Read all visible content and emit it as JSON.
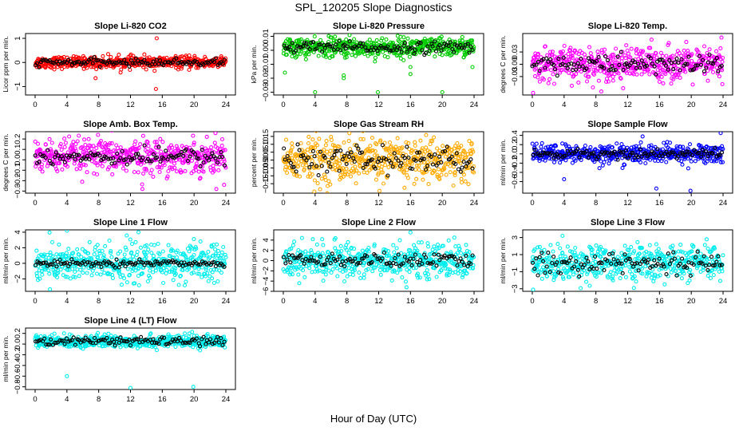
{
  "figure": {
    "title": "SPL_120205  Slope Diagnostics",
    "xlabel": "Hour of Day (UTC)"
  },
  "chart_data": [
    {
      "type": "scatter",
      "title": "Slope Li-820 CO2",
      "ylabel": "Licor ppm per min.",
      "xlim": [
        0,
        24
      ],
      "xticks": [
        0,
        4,
        8,
        12,
        16,
        20,
        24
      ],
      "ylim": [
        -1.35,
        1.2
      ],
      "yticks": [
        -1,
        0,
        1
      ],
      "color": "#ff0000",
      "center": 0.0,
      "spread": 0.12,
      "black_spread": 0.07,
      "outliers": [
        [
          7.6,
          -0.65
        ],
        [
          15.2,
          -1.1
        ],
        [
          15.3,
          1.0
        ]
      ]
    },
    {
      "type": "scatter",
      "title": "Slope Li-820 Pressure",
      "ylabel": "kPa per min.",
      "xlim": [
        0,
        24
      ],
      "xticks": [
        0,
        4,
        8,
        12,
        16,
        20,
        24
      ],
      "ylim": [
        -0.032,
        0.012
      ],
      "yticks": [
        -0.03,
        -0.02,
        -0.01,
        0.0,
        0.01
      ],
      "color": "#00cc00",
      "center": 0.002,
      "spread": 0.0035,
      "black_spread": 0.002,
      "outliers": [
        [
          0.2,
          -0.016
        ],
        [
          4.0,
          -0.03
        ],
        [
          7.6,
          -0.018
        ],
        [
          7.6,
          -0.02
        ],
        [
          11.9,
          -0.03
        ],
        [
          16.0,
          -0.012
        ],
        [
          16.0,
          -0.017
        ],
        [
          20.0,
          -0.03
        ],
        [
          23.8,
          -0.012
        ]
      ]
    },
    {
      "type": "scatter",
      "title": "Slope Li-820 Temp.",
      "ylabel": "degrees C per min.",
      "xlim": [
        0,
        24
      ],
      "xticks": [
        0,
        4,
        8,
        12,
        16,
        20,
        24
      ],
      "ylim": [
        -0.075,
        0.075
      ],
      "yticks": [
        -0.03,
        0.0,
        0.03
      ],
      "color": "#ff00ff",
      "center": 0.0,
      "spread": 0.02,
      "black_spread": 0.012,
      "outliers": [
        [
          0.1,
          -0.07
        ],
        [
          15.0,
          0.06
        ],
        [
          23.8,
          0.065
        ]
      ]
    },
    {
      "type": "scatter",
      "title": "Slope Amb. Box Temp.",
      "ylabel": "degrees C per min.",
      "xlim": [
        0,
        24
      ],
      "xticks": [
        0,
        4,
        8,
        12,
        16,
        20,
        24
      ],
      "ylim": [
        -0.32,
        0.27
      ],
      "yticks": [
        -0.3,
        -0.2,
        -0.1,
        0.0,
        0.1,
        0.2
      ],
      "color": "#ff00ff",
      "center": 0.03,
      "spread": 0.08,
      "black_spread": 0.04,
      "outliers": [
        [
          13.5,
          -0.28
        ],
        [
          22.8,
          -0.28
        ]
      ]
    },
    {
      "type": "scatter",
      "title": "Slope Gas Stream RH",
      "ylabel": "percent per min.",
      "xlim": [
        0,
        24
      ],
      "xticks": [
        0,
        4,
        8,
        12,
        16,
        20,
        24
      ],
      "ylim": [
        -0.21,
        0.18
      ],
      "yticks": [
        -0.15,
        -0.1,
        -0.05,
        0.0,
        0.05,
        0.1,
        0.15
      ],
      "color": "#ffaa00",
      "center": 0.0,
      "spread": 0.07,
      "black_spread": 0.04,
      "outliers": [
        [
          3.9,
          -0.2
        ]
      ]
    },
    {
      "type": "scatter",
      "title": "Slope Sample Flow",
      "ylabel": "ml/min per min.",
      "xlim": [
        0,
        24
      ],
      "xticks": [
        0,
        4,
        8,
        12,
        16,
        20,
        24
      ],
      "ylim": [
        -0.85,
        0.48
      ],
      "yticks": [
        -0.6,
        -0.4,
        -0.2,
        0.0,
        0.2,
        0.4
      ],
      "color": "#0000ff",
      "center": 0.0,
      "spread": 0.1,
      "black_spread": 0.05,
      "outliers": [
        [
          4.0,
          -0.55
        ],
        [
          15.6,
          -0.75
        ],
        [
          19.9,
          -0.8
        ],
        [
          23.7,
          0.45
        ]
      ]
    },
    {
      "type": "scatter",
      "title": "Slope Line 1 Flow",
      "ylabel": "ml/min per min.",
      "xlim": [
        0,
        24
      ],
      "xticks": [
        0,
        4,
        8,
        12,
        16,
        20,
        24
      ],
      "ylim": [
        -3.6,
        4.3
      ],
      "yticks": [
        -2,
        0,
        2,
        4
      ],
      "color": "#00eeee",
      "center": 0.0,
      "spread": 1.2,
      "black_spread": 0.2,
      "outliers": [
        [
          4.0,
          4.2
        ],
        [
          13.0,
          4.0
        ]
      ]
    },
    {
      "type": "scatter",
      "title": "Slope Line 2 Flow",
      "ylabel": "ml/min per min.",
      "xlim": [
        0,
        24
      ],
      "xticks": [
        0,
        4,
        8,
        12,
        16,
        20,
        24
      ],
      "ylim": [
        -6.0,
        6.0
      ],
      "yticks": [
        -6,
        -4,
        -2,
        0,
        2,
        4
      ],
      "color": "#00eeee",
      "center": 0.0,
      "spread": 1.6,
      "black_spread": 0.7,
      "outliers": [
        [
          15.5,
          -5.2
        ],
        [
          16.0,
          5.5
        ]
      ]
    },
    {
      "type": "scatter",
      "title": "Slope Line 3 Flow",
      "ylabel": "ml/min per min.",
      "xlim": [
        0,
        24
      ],
      "xticks": [
        0,
        4,
        8,
        12,
        16,
        20,
        24
      ],
      "ylim": [
        -3.3,
        3.9
      ],
      "yticks": [
        -3,
        -1,
        1,
        3
      ],
      "color": "#00eeee",
      "center": 0.0,
      "spread": 1.0,
      "black_spread": 0.6,
      "outliers": [
        [
          0.1,
          -3.1
        ],
        [
          3.8,
          3.2
        ]
      ]
    },
    {
      "type": "scatter",
      "title": "Slope Line 4 (LT) Flow",
      "ylabel": "ml/min per min.",
      "xlim": [
        0,
        24
      ],
      "xticks": [
        0,
        4,
        8,
        12,
        16,
        20,
        24
      ],
      "ylim": [
        -0.85,
        0.3
      ],
      "yticks": [
        -0.8,
        -0.6,
        -0.4,
        -0.2,
        0.0,
        0.2
      ],
      "color": "#00eeee",
      "center": 0.05,
      "spread": 0.06,
      "black_spread": 0.04,
      "outliers": [
        [
          4.0,
          -0.6
        ],
        [
          12.0,
          -0.82
        ],
        [
          19.9,
          -0.8
        ]
      ]
    }
  ]
}
